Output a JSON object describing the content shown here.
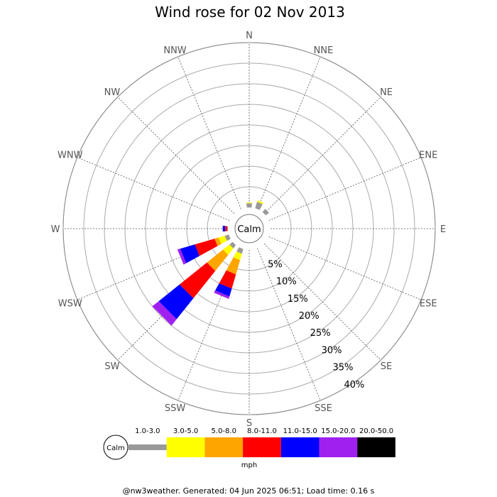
{
  "chart_data": {
    "type": "wind-rose",
    "title": "Wind rose for 02 Nov 2013",
    "calm_label": "Calm",
    "directions": [
      "N",
      "NNE",
      "NE",
      "ENE",
      "E",
      "ESE",
      "SE",
      "SSE",
      "S",
      "SSW",
      "SW",
      "WSW",
      "W",
      "WNW",
      "NW",
      "NNW"
    ],
    "rings": [
      "5%",
      "10%",
      "15%",
      "20%",
      "25%",
      "30%",
      "35%",
      "40%"
    ],
    "speed_bins": [
      {
        "label": "1.0-3.0",
        "color": "#999999"
      },
      {
        "label": "3.0-5.0",
        "color": "#ffff00"
      },
      {
        "label": "5.0-8.0",
        "color": "#ffa500"
      },
      {
        "label": "8.0-11.0",
        "color": "#ff0000"
      },
      {
        "label": "11.0-15.0",
        "color": "#0000ff"
      },
      {
        "label": "15.0-20.0",
        "color": "#a020f0"
      },
      {
        "label": "20.0-50.0",
        "color": "#000000"
      }
    ],
    "unit": "mph",
    "series": [
      {
        "direction": "N",
        "values": [
          1.0,
          0.2,
          0,
          0,
          0,
          0,
          0
        ]
      },
      {
        "direction": "NNE",
        "values": [
          1.6,
          0.4,
          0,
          0,
          0,
          0,
          0
        ]
      },
      {
        "direction": "NE",
        "values": [
          1.0,
          0,
          0,
          0,
          0,
          0,
          0
        ]
      },
      {
        "direction": "SSW",
        "values": [
          1.2,
          1.6,
          3.6,
          3.6,
          2.0,
          0.6,
          0
        ]
      },
      {
        "direction": "SW",
        "values": [
          1.0,
          2.0,
          5.0,
          8.5,
          6.5,
          2.0,
          0
        ]
      },
      {
        "direction": "WSW",
        "values": [
          1.0,
          1.6,
          1.0,
          5.0,
          3.7,
          0.7,
          0
        ]
      },
      {
        "direction": "W",
        "values": [
          0.2,
          0,
          0,
          0.5,
          0.6,
          0,
          0
        ]
      }
    ]
  },
  "footer": "@nw3weather. Generated: 04 Jun 2025 06:51; Load time: 0.16 s"
}
